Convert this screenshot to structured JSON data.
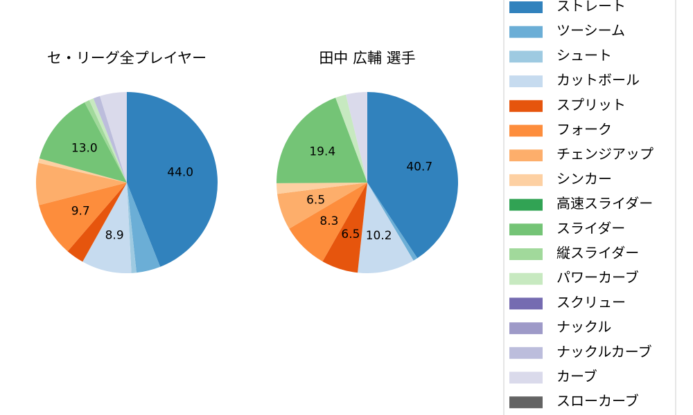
{
  "chart_data": [
    {
      "type": "pie",
      "title": "セ・リーグ全プレイヤー",
      "categories": [
        "ストレート",
        "ツーシーム",
        "シュート",
        "カットボール",
        "スプリット",
        "フォーク",
        "チェンジアップ",
        "シンカー",
        "高速スライダー",
        "スライダー",
        "縦スライダー",
        "パワーカーブ",
        "スクリュー",
        "ナックル",
        "ナックルカーブ",
        "カーブ",
        "スローカーブ"
      ],
      "values": [
        44.0,
        4.3,
        0.9,
        8.9,
        3.2,
        9.7,
        7.5,
        0.8,
        0,
        13.0,
        0.9,
        0.8,
        0,
        0,
        1.2,
        4.8,
        0
      ],
      "value_labels": [
        "44.0",
        null,
        null,
        "8.9",
        null,
        "9.7",
        null,
        null,
        null,
        "13.0",
        null,
        null,
        null,
        null,
        null,
        null,
        null
      ],
      "colors": [
        "#3182bd",
        "#6baed6",
        "#9ecae1",
        "#c6dbef",
        "#e6550d",
        "#fd8d3c",
        "#fdae6b",
        "#fdd0a2",
        "#31a354",
        "#74c476",
        "#a1d99b",
        "#c7e9c0",
        "#756bb1",
        "#9e9ac8",
        "#bcbddc",
        "#dadaeb",
        "#636363"
      ]
    },
    {
      "type": "pie",
      "title": "田中 広輔  選手",
      "categories": [
        "ストレート",
        "ツーシーム",
        "シュート",
        "カットボール",
        "スプリット",
        "フォーク",
        "チェンジアップ",
        "シンカー",
        "高速スライダー",
        "スライダー",
        "縦スライダー",
        "パワーカーブ",
        "スクリュー",
        "ナックル",
        "ナックルカーブ",
        "カーブ",
        "スローカーブ"
      ],
      "values": [
        40.7,
        0.8,
        0,
        10.2,
        6.5,
        8.3,
        6.5,
        1.9,
        0,
        19.4,
        0,
        1.9,
        0,
        0,
        0,
        3.8,
        0
      ],
      "value_labels": [
        "40.7",
        null,
        null,
        "10.2",
        "6.5",
        "8.3",
        "6.5",
        null,
        null,
        "19.4",
        null,
        null,
        null,
        null,
        null,
        null,
        null
      ],
      "colors": [
        "#3182bd",
        "#6baed6",
        "#9ecae1",
        "#c6dbef",
        "#e6550d",
        "#fd8d3c",
        "#fdae6b",
        "#fdd0a2",
        "#31a354",
        "#74c476",
        "#a1d99b",
        "#c7e9c0",
        "#756bb1",
        "#9e9ac8",
        "#bcbddc",
        "#dadaeb",
        "#636363"
      ]
    }
  ]
}
